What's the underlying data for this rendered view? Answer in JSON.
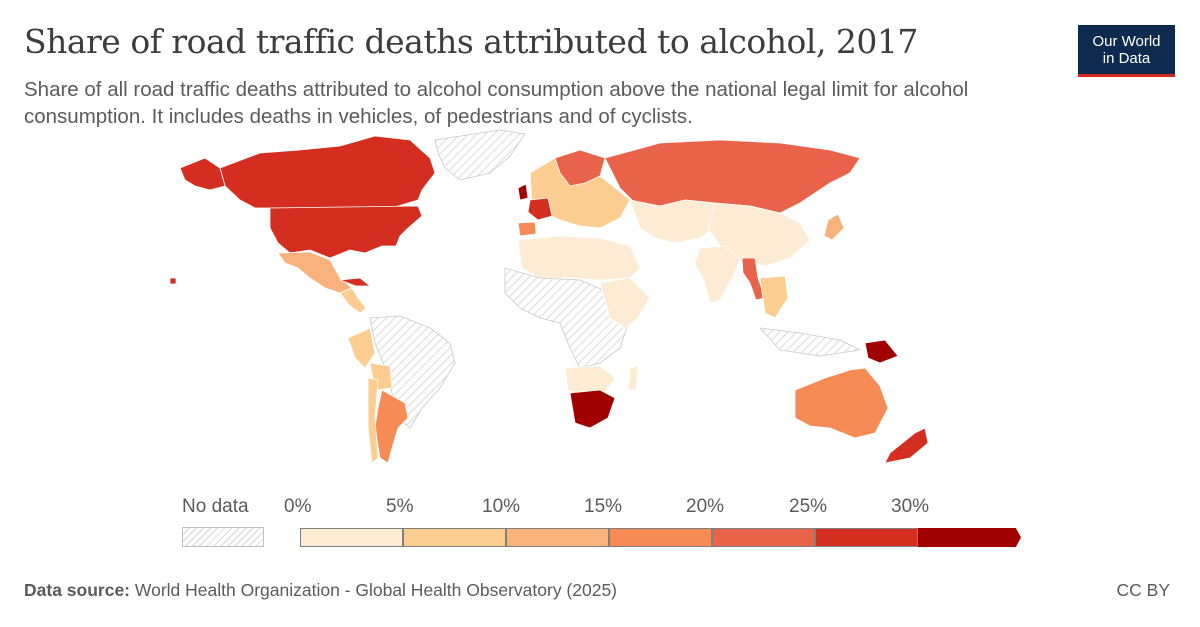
{
  "title": "Share of road traffic deaths attributed to alcohol, 2017",
  "subtitle": "Share of all road traffic deaths attributed to alcohol consumption above the national legal limit for alcohol consumption. It includes deaths in vehicles, of pedestrians and of cyclists.",
  "logo": {
    "line1": "Our World",
    "line2": "in Data"
  },
  "legend": {
    "no_data_label": "No data",
    "ticks": [
      "0%",
      "5%",
      "10%",
      "15%",
      "20%",
      "25%",
      "30%"
    ],
    "bins": [
      {
        "from": 0,
        "to": 5,
        "color": "#fdebd3"
      },
      {
        "from": 5,
        "to": 10,
        "color": "#fccd91"
      },
      {
        "from": 10,
        "to": 15,
        "color": "#f9b27c"
      },
      {
        "from": 15,
        "to": 20,
        "color": "#f68b55"
      },
      {
        "from": 20,
        "to": 25,
        "color": "#e8634a"
      },
      {
        "from": 25,
        "to": 30,
        "color": "#d42e20"
      },
      {
        "from": 30,
        "to": null,
        "color": "#a00000"
      }
    ]
  },
  "footer": {
    "source_label": "Data source:",
    "source_text": "World Health Organization - Global Health Observatory (2025)",
    "license": "CC BY"
  },
  "chart_data": {
    "type": "choropleth",
    "year": 2017,
    "unit": "%",
    "no_data_color": "hatched",
    "regions": [
      {
        "name": "Canada",
        "color": "#d42e20"
      },
      {
        "name": "United States",
        "color": "#d42e20"
      },
      {
        "name": "Mexico",
        "color": "#f9b27c"
      },
      {
        "name": "Cuba",
        "color": "#d42e20"
      },
      {
        "name": "Argentina",
        "color": "#f68b55"
      },
      {
        "name": "Russia",
        "color": "#e8634a"
      },
      {
        "name": "Myanmar",
        "color": "#e8634a"
      },
      {
        "name": "Papua New Guinea",
        "color": "#a00000"
      },
      {
        "name": "South Africa",
        "color": "#a00000"
      },
      {
        "name": "Australia",
        "color": "#f68b55"
      },
      {
        "name": "New Zealand",
        "color": "#d42e20"
      },
      {
        "name": "France",
        "color": "#d42e20"
      },
      {
        "name": "China",
        "color": "#fdebd3"
      },
      {
        "name": "India",
        "color": "#fdebd3"
      },
      {
        "name": "Greenland",
        "color": "hatched"
      }
    ]
  }
}
